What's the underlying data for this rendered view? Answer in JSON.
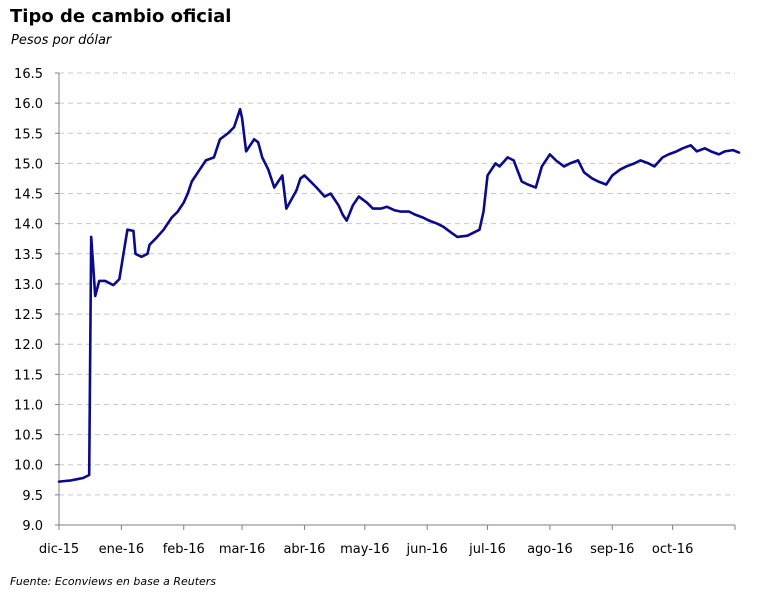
{
  "header": {
    "title": "Tipo de cambio oficial",
    "subtitle": "Pesos por dólar"
  },
  "footer": {
    "source": "Fuente: Econviews en base a Reuters"
  },
  "colors": {
    "line": "#0a0a8c",
    "grid": "#c8c8c8",
    "axis": "#808080"
  },
  "chart_data": {
    "type": "line",
    "title": "Tipo de cambio oficial",
    "subtitle": "Pesos por dólar",
    "xlabel": "",
    "ylabel": "",
    "ylim": [
      9.0,
      16.5
    ],
    "yticks": [
      "9.0",
      "9.5",
      "10.0",
      "10.5",
      "11.0",
      "11.5",
      "12.0",
      "12.5",
      "13.0",
      "13.5",
      "14.0",
      "14.5",
      "15.0",
      "15.5",
      "16.0",
      "16.5"
    ],
    "xticks": [
      "dic-15",
      "ene-16",
      "feb-16",
      "mar-16",
      "abr-16",
      "may-16",
      "jun-16",
      "jul-16",
      "ago-16",
      "sep-16",
      "oct-16"
    ],
    "grid": true,
    "legend": "none",
    "x": [
      "2015-12-01",
      "2015-12-04",
      "2015-12-07",
      "2015-12-10",
      "2015-12-13",
      "2015-12-16",
      "2015-12-17",
      "2015-12-18",
      "2015-12-19",
      "2015-12-21",
      "2015-12-24",
      "2015-12-28",
      "2015-12-31",
      "2016-01-04",
      "2016-01-07",
      "2016-01-08",
      "2016-01-11",
      "2016-01-14",
      "2016-01-15",
      "2016-01-18",
      "2016-01-22",
      "2016-01-26",
      "2016-01-29",
      "2016-02-01",
      "2016-02-03",
      "2016-02-05",
      "2016-02-09",
      "2016-02-12",
      "2016-02-16",
      "2016-02-19",
      "2016-02-23",
      "2016-02-26",
      "2016-02-29",
      "2016-03-01",
      "2016-03-03",
      "2016-03-07",
      "2016-03-09",
      "2016-03-11",
      "2016-03-14",
      "2016-03-17",
      "2016-03-21",
      "2016-03-23",
      "2016-03-28",
      "2016-03-30",
      "2016-04-01",
      "2016-04-04",
      "2016-04-07",
      "2016-04-11",
      "2016-04-14",
      "2016-04-18",
      "2016-04-20",
      "2016-04-22",
      "2016-04-25",
      "2016-04-28",
      "2016-05-02",
      "2016-05-05",
      "2016-05-09",
      "2016-05-12",
      "2016-05-16",
      "2016-05-19",
      "2016-05-23",
      "2016-05-26",
      "2016-05-30",
      "2016-06-02",
      "2016-06-06",
      "2016-06-09",
      "2016-06-13",
      "2016-06-16",
      "2016-06-21",
      "2016-06-24",
      "2016-06-27",
      "2016-06-29",
      "2016-07-01",
      "2016-07-05",
      "2016-07-07",
      "2016-07-11",
      "2016-07-14",
      "2016-07-18",
      "2016-07-21",
      "2016-07-25",
      "2016-07-28",
      "2016-08-01",
      "2016-08-04",
      "2016-08-08",
      "2016-08-11",
      "2016-08-15",
      "2016-08-18",
      "2016-08-22",
      "2016-08-25",
      "2016-08-29",
      "2016-09-01",
      "2016-09-05",
      "2016-09-08",
      "2016-09-12",
      "2016-09-15",
      "2016-09-19",
      "2016-09-22",
      "2016-09-26",
      "2016-09-29",
      "2016-10-03",
      "2016-10-06",
      "2016-10-10",
      "2016-10-13",
      "2016-10-17",
      "2016-10-20",
      "2016-10-24",
      "2016-10-27",
      "2016-10-31",
      "2016-11-03"
    ],
    "series": [
      {
        "values": [
          9.72,
          9.73,
          9.74,
          9.76,
          9.78,
          9.83,
          13.78,
          13.3,
          12.8,
          13.05,
          13.05,
          12.98,
          13.08,
          13.9,
          13.88,
          13.5,
          13.45,
          13.5,
          13.65,
          13.75,
          13.9,
          14.1,
          14.2,
          14.35,
          14.5,
          14.7,
          14.9,
          15.05,
          15.1,
          15.4,
          15.5,
          15.6,
          15.9,
          15.75,
          15.2,
          15.4,
          15.35,
          15.1,
          14.9,
          14.6,
          14.8,
          14.25,
          14.55,
          14.75,
          14.8,
          14.7,
          14.6,
          14.45,
          14.5,
          14.3,
          14.15,
          14.05,
          14.3,
          14.45,
          14.35,
          14.25,
          14.25,
          14.28,
          14.22,
          14.2,
          14.2,
          14.15,
          14.1,
          14.05,
          14.0,
          13.95,
          13.85,
          13.78,
          13.8,
          13.85,
          13.9,
          14.2,
          14.8,
          15.0,
          14.95,
          15.1,
          15.05,
          14.7,
          14.65,
          14.6,
          14.95,
          15.15,
          15.05,
          14.95,
          15.0,
          15.05,
          14.85,
          14.75,
          14.7,
          14.65,
          14.8,
          14.9,
          14.95,
          15.0,
          15.05,
          15.0,
          14.95,
          15.1,
          15.15,
          15.2,
          15.25,
          15.3,
          15.2,
          15.25,
          15.2,
          15.15,
          15.2,
          15.22,
          15.18
        ]
      }
    ]
  }
}
